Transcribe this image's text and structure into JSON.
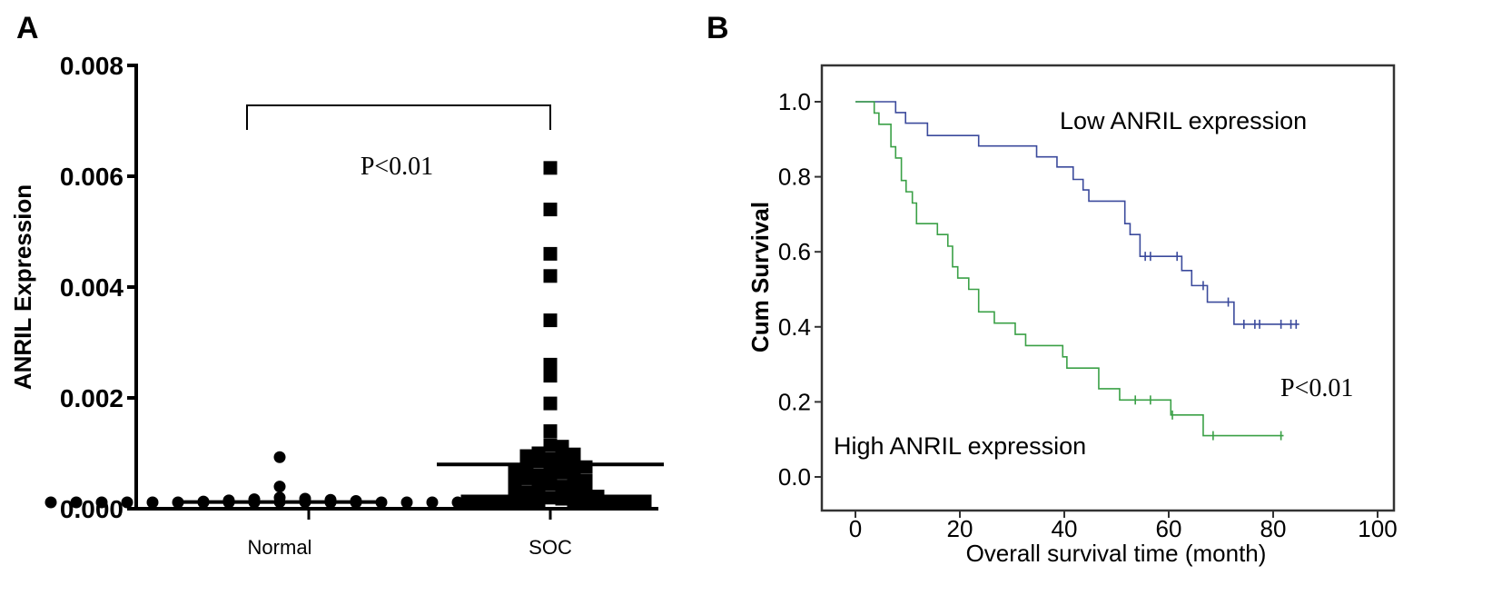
{
  "chart_data": [
    {
      "panel_label": "A",
      "type": "scatter",
      "title": "",
      "xlabel": "",
      "ylabel": "ANRIL Expression",
      "ylim": [
        0,
        0.008
      ],
      "yticks": [
        "0.000",
        "0.002",
        "0.004",
        "0.006",
        "0.008"
      ],
      "categories": [
        "Normal",
        "SOC"
      ],
      "annotation": "P<0.01",
      "series": [
        {
          "name": "Normal",
          "marker": "circle",
          "mean": 0.00012,
          "values": [
            0.00093,
            0.0004,
            0.0002,
            0.00018,
            0.00017,
            0.00016,
            0.00015,
            0.00014,
            0.00013,
            0.00012,
            0.00012,
            0.00011,
            0.00011,
            0.0001,
            0.0001,
            9e-05,
            9e-05,
            8e-05,
            8e-05,
            7e-05,
            7e-05,
            6e-05,
            6e-05,
            5e-05,
            5e-05,
            4e-05,
            4e-05,
            3e-05
          ]
        },
        {
          "name": "SOC",
          "marker": "square",
          "mean": 0.0008,
          "values": [
            0.00615,
            0.0054,
            0.0046,
            0.0042,
            0.0034,
            0.0026,
            0.0024,
            0.0019,
            0.0014,
            0.00115,
            0.00112,
            0.001,
            0.00098,
            0.00095,
            0.0009,
            0.00088,
            0.00085,
            0.0008,
            0.00078,
            0.00075,
            0.0007,
            0.00068,
            0.00065,
            0.0006,
            0.00058,
            0.00055,
            0.0005,
            0.00048,
            0.00045,
            0.0004,
            0.00038,
            0.00035,
            0.0003,
            0.00028,
            0.00025,
            0.00022,
            0.0002,
            0.00018,
            0.00015,
            0.00013,
            0.00012,
            0.0001,
            9e-05,
            8e-05,
            7e-05,
            6e-05,
            5e-05,
            4e-05,
            3e-05,
            2e-05,
            2e-05,
            1e-05
          ]
        }
      ]
    },
    {
      "panel_label": "B",
      "type": "line",
      "subtype": "kaplan-meier",
      "xlabel": "Overall survival time (month)",
      "ylabel": "Cum Survival",
      "xlim": [
        0,
        100
      ],
      "ylim": [
        0,
        1.0
      ],
      "xticks": [
        "0",
        "20",
        "40",
        "60",
        "80",
        "100"
      ],
      "yticks": [
        "0.0",
        "0.2",
        "0.4",
        "0.6",
        "0.8",
        "1.0"
      ],
      "annotation": "P<0.01",
      "series": [
        {
          "name": "Low ANRIL expression",
          "color": "#3b4a9c",
          "steps": [
            [
              0,
              1.0
            ],
            [
              7.7,
              0.971
            ],
            [
              9.6,
              0.943
            ],
            [
              13.8,
              0.91
            ],
            [
              23.6,
              0.882
            ],
            [
              34.7,
              0.853
            ],
            [
              38.6,
              0.826
            ],
            [
              41.7,
              0.793
            ],
            [
              43.6,
              0.765
            ],
            [
              44.7,
              0.735
            ],
            [
              51.6,
              0.675
            ],
            [
              52.6,
              0.646
            ],
            [
              54.5,
              0.588
            ],
            [
              62.5,
              0.55
            ],
            [
              64.4,
              0.51
            ],
            [
              67.4,
              0.466
            ],
            [
              72.5,
              0.407
            ]
          ],
          "end": 85,
          "censored": [
            55.5,
            56.5,
            61.6,
            66.6,
            71.4,
            74.4,
            76.5,
            77.4,
            81.5,
            83.4,
            84.4
          ]
        },
        {
          "name": "High ANRIL expression",
          "color": "#3aa046",
          "steps": [
            [
              0,
              1.0
            ],
            [
              3.6,
              0.97
            ],
            [
              4.5,
              0.94
            ],
            [
              6.8,
              0.88
            ],
            [
              7.7,
              0.85
            ],
            [
              8.8,
              0.79
            ],
            [
              9.7,
              0.76
            ],
            [
              10.9,
              0.73
            ],
            [
              11.7,
              0.675
            ],
            [
              15.7,
              0.646
            ],
            [
              17.7,
              0.615
            ],
            [
              18.6,
              0.56
            ],
            [
              19.6,
              0.53
            ],
            [
              21.7,
              0.5
            ],
            [
              23.6,
              0.44
            ],
            [
              26.6,
              0.41
            ],
            [
              30.6,
              0.38
            ],
            [
              32.6,
              0.35
            ],
            [
              39.7,
              0.32
            ],
            [
              40.5,
              0.29
            ],
            [
              46.6,
              0.235
            ],
            [
              50.6,
              0.205
            ],
            [
              60.4,
              0.165
            ],
            [
              66.6,
              0.11
            ]
          ],
          "end": 82,
          "censored": [
            53.6,
            56.5,
            60.7,
            68.5,
            81.5
          ]
        }
      ]
    }
  ]
}
